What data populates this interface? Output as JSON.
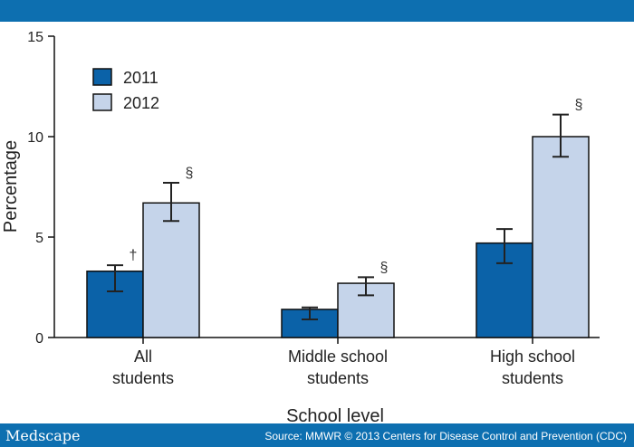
{
  "brand": {
    "name": "Medscape"
  },
  "source_text": "Source: MMWR © 2013 Centers for Disease Control and Prevention (CDC)",
  "colors": {
    "series_2011": "#0b62a8",
    "series_2012": "#c5d4ea",
    "bar_stroke": "#111111",
    "band": "#0d6fb0"
  },
  "chart_data": {
    "type": "bar",
    "title": "",
    "xlabel": "School level",
    "ylabel": "Percentage",
    "ylim": [
      0,
      15
    ],
    "yticks": [
      0,
      5,
      10,
      15
    ],
    "yticks_label": [
      "0",
      "5",
      "10",
      "15"
    ],
    "categories": [
      {
        "line1": "All",
        "line2": "students"
      },
      {
        "line1": "Middle school",
        "line2": "students"
      },
      {
        "line1": "High school",
        "line2": "students"
      }
    ],
    "legend_position": "top-left",
    "series": [
      {
        "name": "2011",
        "values": [
          3.3,
          1.4,
          4.7
        ],
        "ci_low": [
          2.3,
          0.9,
          3.7
        ],
        "ci_high": [
          3.6,
          1.5,
          5.4
        ],
        "marks": [
          "†",
          "",
          ""
        ]
      },
      {
        "name": "2012",
        "values": [
          6.7,
          2.7,
          10.0
        ],
        "ci_low": [
          5.8,
          2.1,
          9.0
        ],
        "ci_high": [
          7.7,
          3.0,
          11.1
        ],
        "marks": [
          "§",
          "§",
          "§"
        ]
      }
    ]
  }
}
